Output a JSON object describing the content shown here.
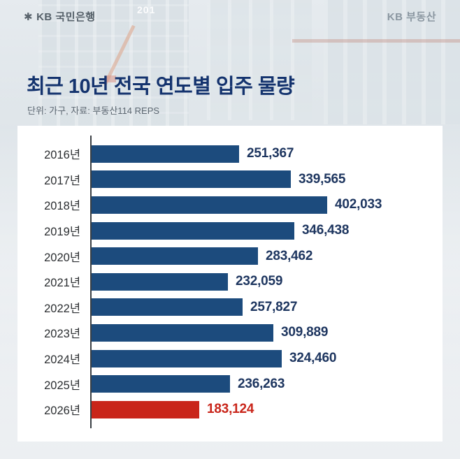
{
  "header": {
    "left_logo": "KB 국민은행",
    "right_logo": "KB 부동산"
  },
  "background": {
    "building_number": "201"
  },
  "title": "최근 10년 전국 연도별 입주 물량",
  "subtitle": "단위: 가구, 자료: 부동산114 REPS",
  "colors": {
    "bar": "#1c4b7d",
    "highlight": "#c9251a",
    "title": "#14336e",
    "value": "#1d355f",
    "axis": "#3a3f44"
  },
  "chart_data": {
    "type": "bar",
    "orientation": "horizontal",
    "title": "최근 10년 전국 연도별 입주 물량",
    "unit_note": "단위: 가구",
    "source": "부동산114 REPS",
    "categories": [
      "2016년",
      "2017년",
      "2018년",
      "2019년",
      "2020년",
      "2021년",
      "2022년",
      "2023년",
      "2024년",
      "2025년",
      "2026년"
    ],
    "values": [
      251367,
      339565,
      402033,
      346438,
      283462,
      232059,
      257827,
      309889,
      324460,
      236263,
      183124
    ],
    "value_labels": [
      "251,367",
      "339,565",
      "402,033",
      "346,438",
      "283,462",
      "232,059",
      "257,827",
      "309,889",
      "324,460",
      "236,263",
      "183,124"
    ],
    "highlight_index": 10,
    "xlim": [
      0,
      402033
    ],
    "legend": "none",
    "grid": false
  }
}
